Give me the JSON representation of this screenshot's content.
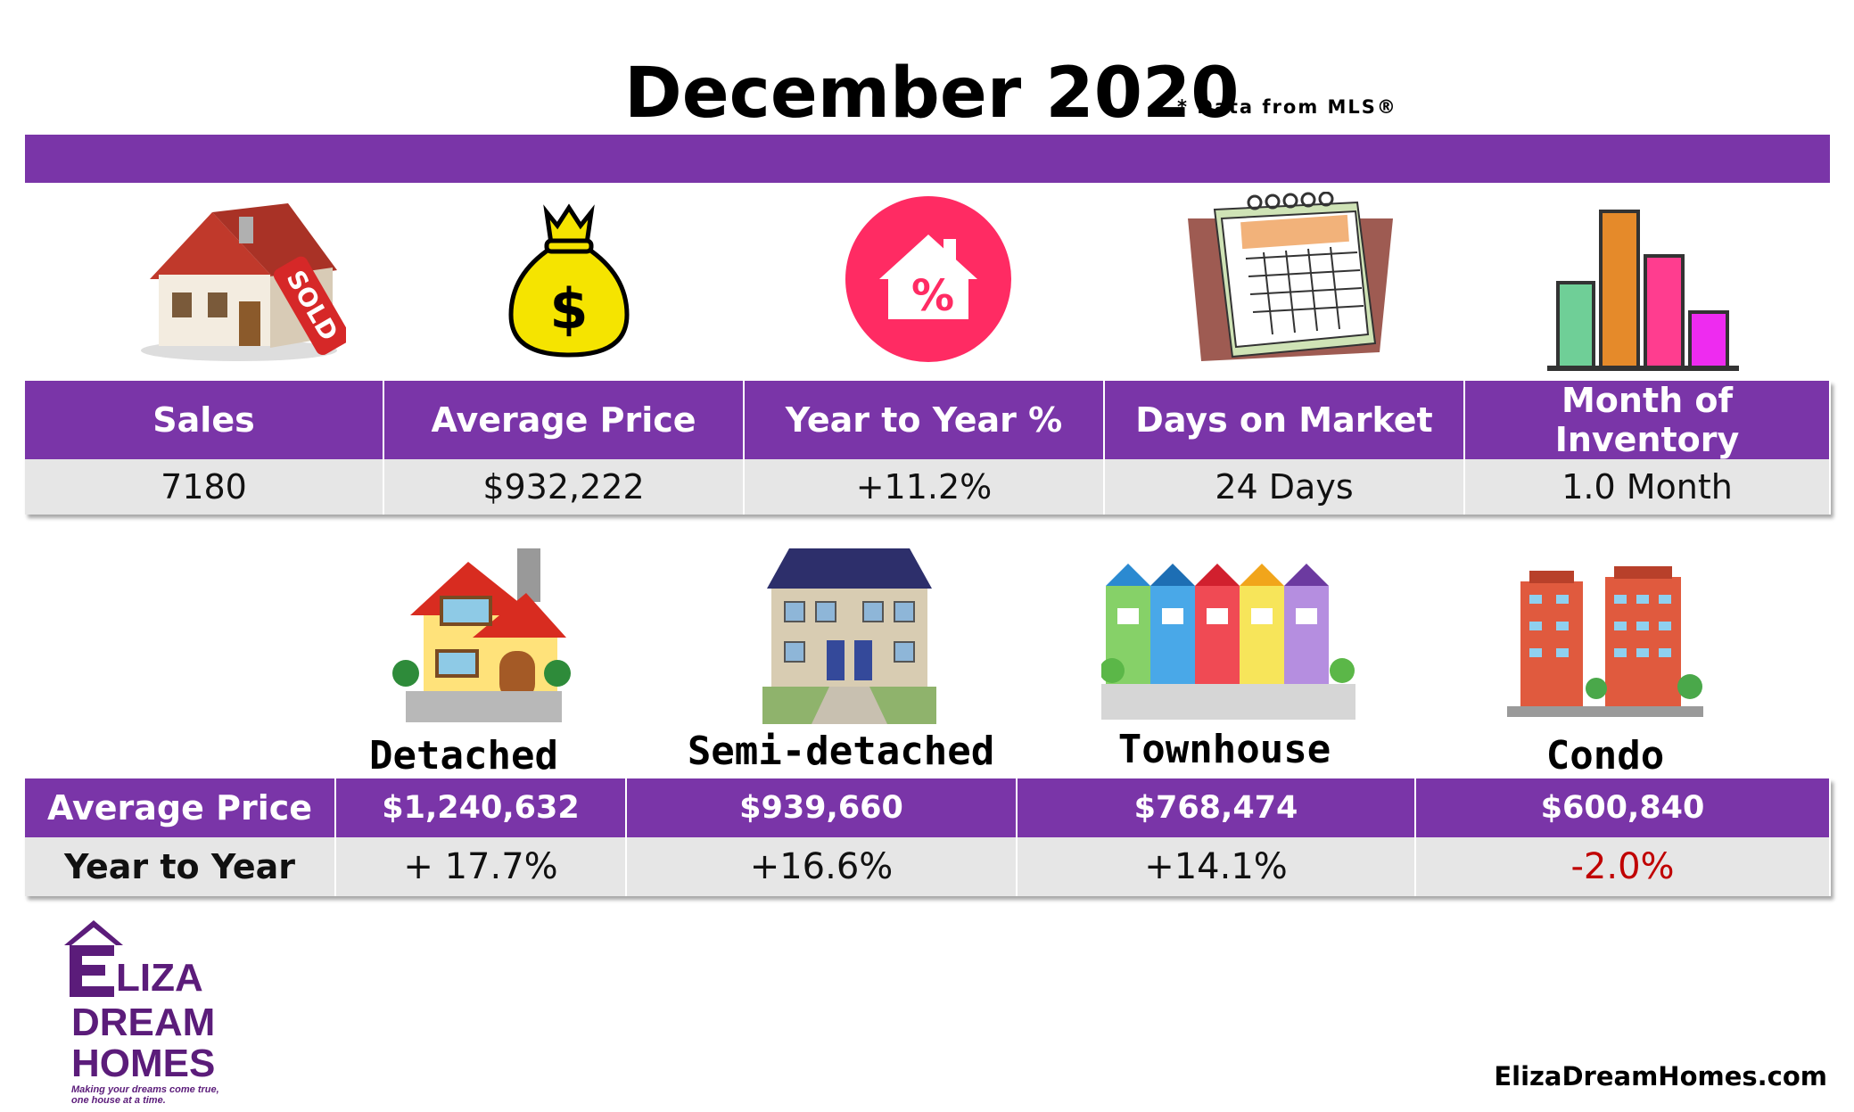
{
  "header": {
    "title": "December 2020",
    "subtitle": "* Data from MLS®"
  },
  "summary": {
    "columns": [
      "Sales",
      "Average Price",
      "Year to Year %",
      "Days on Market",
      "Month of Inventory"
    ],
    "values": [
      "7180",
      "$932,222",
      "+11.2%",
      "24 Days",
      "1.0 Month"
    ],
    "icons": [
      "house-sold-icon",
      "money-bag-icon",
      "home-percent-icon",
      "calendar-icon",
      "bar-chart-icon"
    ]
  },
  "types": {
    "labels": [
      "Detached",
      "Semi-detached",
      "Townhouse",
      "Condo"
    ],
    "icons": [
      "detached-house-icon",
      "semi-detached-house-icon",
      "townhouse-icon",
      "condo-building-icon"
    ],
    "row1_label": "Average Price",
    "prices": [
      "$1,240,632",
      "$939,660",
      "$768,474",
      "$600,840"
    ],
    "row2_label": "Year to Year",
    "changes": [
      "+ 17.7%",
      "+16.6%",
      "+14.1%",
      "-2.0%"
    ]
  },
  "logo": {
    "line1": "LIZA",
    "line2": "DREAM",
    "line3": "HOMES",
    "tagline": "Making your dreams come true, one house at a time."
  },
  "website": "ElizaDreamHomes.com",
  "colors": {
    "purple": "#7a35a8",
    "cell_gray": "#e6e6e6",
    "negative_red": "#c00000",
    "logo_purple": "#5b1c7a"
  }
}
